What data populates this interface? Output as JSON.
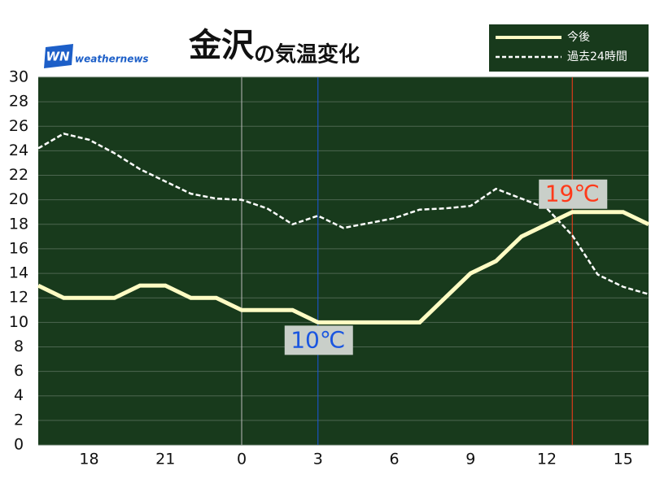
{
  "chart_data": {
    "type": "line",
    "title": "金沢",
    "title_suffix": "の気温変化",
    "logo_mark": "WN",
    "logo_text": "weathernews",
    "x": [
      16,
      17,
      18,
      19,
      20,
      21,
      22,
      23,
      24,
      25,
      26,
      27,
      28,
      29,
      30,
      31,
      32,
      33,
      34,
      35,
      36,
      37,
      38,
      39,
      40
    ],
    "xlim": [
      16,
      40
    ],
    "xticks": [
      18,
      21,
      {
        "value": 24,
        "label": "0"
      },
      {
        "value": 27,
        "label": "3"
      },
      {
        "value": 30,
        "label": "6"
      },
      {
        "value": 33,
        "label": "9"
      },
      {
        "value": 36,
        "label": "12"
      },
      {
        "value": 39,
        "label": "15"
      }
    ],
    "ylim": [
      0,
      30
    ],
    "yticks": [
      0,
      2,
      4,
      6,
      8,
      10,
      12,
      14,
      16,
      18,
      20,
      22,
      24,
      26,
      28,
      30
    ],
    "grid": true,
    "legend": "top-right",
    "series": [
      {
        "name": "今後",
        "color": "#fffcc4",
        "style": "solid",
        "values": [
          13,
          12,
          12,
          12,
          13,
          13,
          12,
          12,
          11,
          11,
          11,
          10,
          10,
          10,
          10,
          10,
          12,
          14,
          15,
          17,
          18,
          19,
          19,
          19,
          18
        ]
      },
      {
        "name": "過去24時間",
        "color": "#ffffff",
        "style": "dashed",
        "values": [
          24.2,
          25.4,
          24.9,
          23.8,
          22.5,
          21.5,
          20.5,
          20.1,
          20,
          19.3,
          18,
          18.7,
          17.7,
          18.1,
          18.5,
          19.2,
          19.3,
          19.5,
          20.9,
          20.1,
          19.3,
          17.1,
          13.9,
          12.9,
          12.3
        ]
      }
    ],
    "annotations": [
      {
        "text": "10℃",
        "x": 27,
        "y": 10,
        "color": "#1a56e0",
        "position": "below"
      },
      {
        "text": "19℃",
        "x": 37,
        "y": 19,
        "color": "#ff3a1a",
        "position": "above"
      }
    ]
  }
}
